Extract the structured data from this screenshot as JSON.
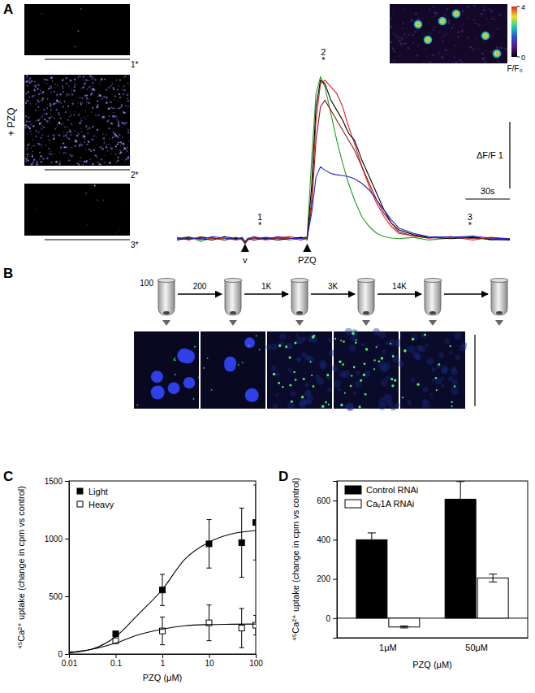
{
  "figure": {
    "panel_labels": [
      "A",
      "B",
      "C",
      "D"
    ],
    "image_labels": [
      "1*",
      "2*",
      "3*"
    ],
    "treatment_label": "+ PZQ",
    "fractionation_steps": [
      "100",
      "200",
      "1K",
      "3K",
      "14K"
    ]
  },
  "chart_data": [
    {
      "type": "line",
      "xlim": [
        0,
        225
      ],
      "ylim": [
        -0.3,
        2.8
      ],
      "tick_labels": false,
      "x": [
        0,
        8,
        16,
        24,
        32,
        40,
        44,
        46,
        48,
        52,
        60,
        68,
        76,
        84,
        88,
        91,
        94,
        97,
        100,
        104,
        108,
        112,
        116,
        120,
        125,
        130,
        135,
        140,
        145,
        150,
        160,
        170,
        185,
        200,
        212,
        225
      ],
      "series": [
        {
          "color": "#1f9e1f",
          "values": [
            0.02,
            0.05,
            -0.02,
            0.04,
            0.0,
            0.03,
            0.0,
            -0.06,
            0.01,
            0.03,
            0.02,
            0.04,
            0.0,
            0.03,
            0.05,
            1.2,
            2.2,
            2.45,
            2.3,
            1.9,
            1.5,
            1.15,
            0.85,
            0.6,
            0.35,
            0.2,
            0.1,
            0.05,
            0.03,
            0.02,
            0.04,
            0.0,
            0.03,
            0.05,
            0.0,
            0.02
          ]
        },
        {
          "color": "#e02020",
          "values": [
            0.04,
            0.0,
            0.05,
            0.02,
            0.03,
            0.0,
            0.02,
            -0.05,
            0.0,
            0.04,
            0.0,
            0.03,
            0.05,
            0.02,
            0.0,
            0.6,
            1.8,
            2.35,
            2.4,
            2.3,
            2.2,
            2.0,
            1.7,
            1.45,
            1.1,
            0.8,
            0.55,
            0.35,
            0.2,
            0.1,
            0.06,
            0.03,
            0.05,
            0.0,
            0.04,
            0.02
          ]
        },
        {
          "color": "#000000",
          "values": [
            0.0,
            0.03,
            0.02,
            0.0,
            0.05,
            0.02,
            0.03,
            -0.04,
            0.02,
            0.0,
            0.03,
            0.0,
            0.02,
            0.04,
            0.02,
            0.8,
            2.0,
            2.4,
            2.35,
            2.1,
            1.95,
            1.8,
            1.6,
            1.5,
            1.2,
            0.95,
            0.7,
            0.45,
            0.25,
            0.15,
            0.08,
            0.04,
            0.02,
            0.04,
            0.01,
            0.0
          ]
        },
        {
          "color": "#8b1a1a",
          "values": [
            0.03,
            0.01,
            0.04,
            0.03,
            0.0,
            0.04,
            0.01,
            -0.03,
            0.03,
            0.02,
            0.04,
            0.02,
            0.03,
            0.0,
            0.03,
            0.5,
            1.5,
            2.0,
            2.1,
            1.95,
            1.8,
            1.65,
            1.5,
            1.35,
            1.1,
            0.85,
            0.6,
            0.4,
            0.25,
            0.12,
            0.06,
            0.03,
            0.05,
            0.02,
            0.03,
            0.01
          ]
        },
        {
          "color": "#2424d0",
          "values": [
            0.02,
            0.04,
            0.01,
            0.05,
            0.03,
            0.01,
            0.04,
            -0.02,
            0.02,
            0.05,
            0.01,
            0.05,
            0.03,
            0.02,
            0.04,
            0.4,
            0.95,
            1.1,
            1.05,
            1.0,
            0.98,
            0.97,
            0.95,
            0.92,
            0.85,
            0.75,
            0.6,
            0.45,
            0.3,
            0.18,
            0.1,
            0.05,
            0.04,
            0.06,
            0.03,
            0.02
          ]
        }
      ],
      "annotations": [
        {
          "x": 56,
          "y": 0.3,
          "lines": [
            "1",
            "*"
          ]
        },
        {
          "x": 99,
          "y": 2.78,
          "lines": [
            "2",
            "*"
          ]
        },
        {
          "x": 198,
          "y": 0.3,
          "lines": [
            "3",
            "*"
          ]
        }
      ],
      "events": [
        {
          "x": 46,
          "label": "v"
        },
        {
          "x": 88,
          "label": "PZQ"
        }
      ],
      "scale_bars": {
        "x": {
          "value": 30,
          "label": "30s"
        },
        "y": {
          "value": 1,
          "label": "ΔF/F 1"
        }
      },
      "colorbar": {
        "range": [
          0,
          4
        ],
        "ticks": [
          0,
          4
        ],
        "label": "F/F₀"
      }
    },
    {
      "type": "scatter",
      "log": "x",
      "xlim": [
        0.01,
        100
      ],
      "ylim": [
        0,
        1500
      ],
      "xticks": [
        0.01,
        0.1,
        1,
        10,
        100
      ],
      "yticks": [
        0,
        500,
        1000,
        1500
      ],
      "x_label": "PZQ (μM)",
      "y_label": "⁴⁵Ca²⁺ uptake (change in cpm vs control)",
      "legend": "top-left",
      "series": [
        {
          "name": "Light",
          "type": "scatter",
          "marker": "square",
          "color": "#000000",
          "x": [
            0.1,
            1,
            10,
            50,
            100
          ],
          "values": [
            175,
            555,
            955,
            965,
            1140
          ],
          "errors": [
            0,
            135,
            210,
            300,
            325
          ]
        },
        {
          "name": "Heavy",
          "type": "scatter",
          "marker": "square",
          "color": "#ffffff",
          "x": [
            0.1,
            1,
            10,
            50,
            100
          ],
          "values": [
            115,
            200,
            270,
            225,
            250
          ],
          "errors": [
            0,
            120,
            155,
            170,
            85
          ]
        },
        {
          "type": "line",
          "color": "#000000",
          "x": [
            0.01,
            0.03,
            0.1,
            0.3,
            1,
            3,
            10,
            30,
            100
          ],
          "values": [
            10,
            40,
            150,
            340,
            560,
            820,
            970,
            1040,
            1070
          ]
        },
        {
          "type": "line",
          "color": "#000000",
          "x": [
            0.01,
            0.03,
            0.1,
            0.3,
            1,
            3,
            10,
            30,
            100
          ],
          "values": [
            15,
            40,
            95,
            165,
            215,
            245,
            255,
            258,
            260
          ]
        }
      ]
    },
    {
      "type": "bar",
      "ylim": [
        -100,
        700
      ],
      "yticks": [
        0,
        200,
        400,
        600
      ],
      "categories": [
        "1μM",
        "50μM"
      ],
      "x_label": "PZQ (μM)",
      "y_label": "⁴⁵Ca²⁺ uptake (change in cpm vs control)",
      "legend": "top-left",
      "series": [
        {
          "name": "Control RNAi",
          "color": "#000000",
          "values": [
            400,
            607
          ],
          "errors": [
            35,
            90
          ]
        },
        {
          "name": "Caᵥ1A RNAi",
          "color": "#ffffff",
          "values": [
            -45,
            205
          ],
          "errors": [
            5,
            20
          ]
        }
      ]
    }
  ]
}
